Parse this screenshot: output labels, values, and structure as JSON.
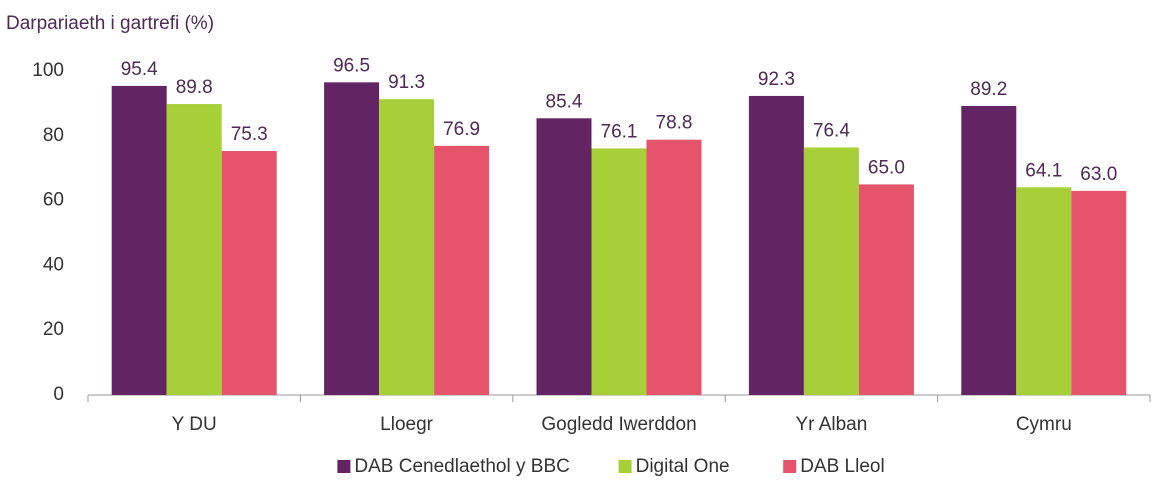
{
  "chart_data": {
    "type": "bar",
    "y_axis_label": "Darpariaeth i gartrefi (%)",
    "categories": [
      "Y DU",
      "Lloegr",
      "Gogledd Iwerddon",
      "Yr Alban",
      "Cymru"
    ],
    "series": [
      {
        "name": "DAB Cenedlaethol y BBC",
        "color": "#622463",
        "values": [
          95.4,
          96.5,
          85.4,
          92.3,
          89.2
        ],
        "value_labels": [
          "95.4",
          "96.5",
          "85.4",
          "92.3",
          "89.2"
        ]
      },
      {
        "name": "Digital One",
        "color": "#a6cf38",
        "values": [
          89.8,
          91.3,
          76.1,
          76.4,
          64.1
        ],
        "value_labels": [
          "89.8",
          "91.3",
          "76.1",
          "76.4",
          "64.1"
        ]
      },
      {
        "name": "DAB Lleol",
        "color": "#e5546a",
        "values": [
          75.3,
          76.9,
          78.8,
          65.0,
          63.0
        ],
        "value_labels": [
          "75.3",
          "76.9",
          "78.8",
          "65.0",
          "63.0"
        ]
      }
    ],
    "ylim": [
      0,
      100
    ],
    "yticks": [
      0,
      20,
      40,
      60,
      80,
      100
    ],
    "grid": false,
    "legend": "bottom"
  }
}
